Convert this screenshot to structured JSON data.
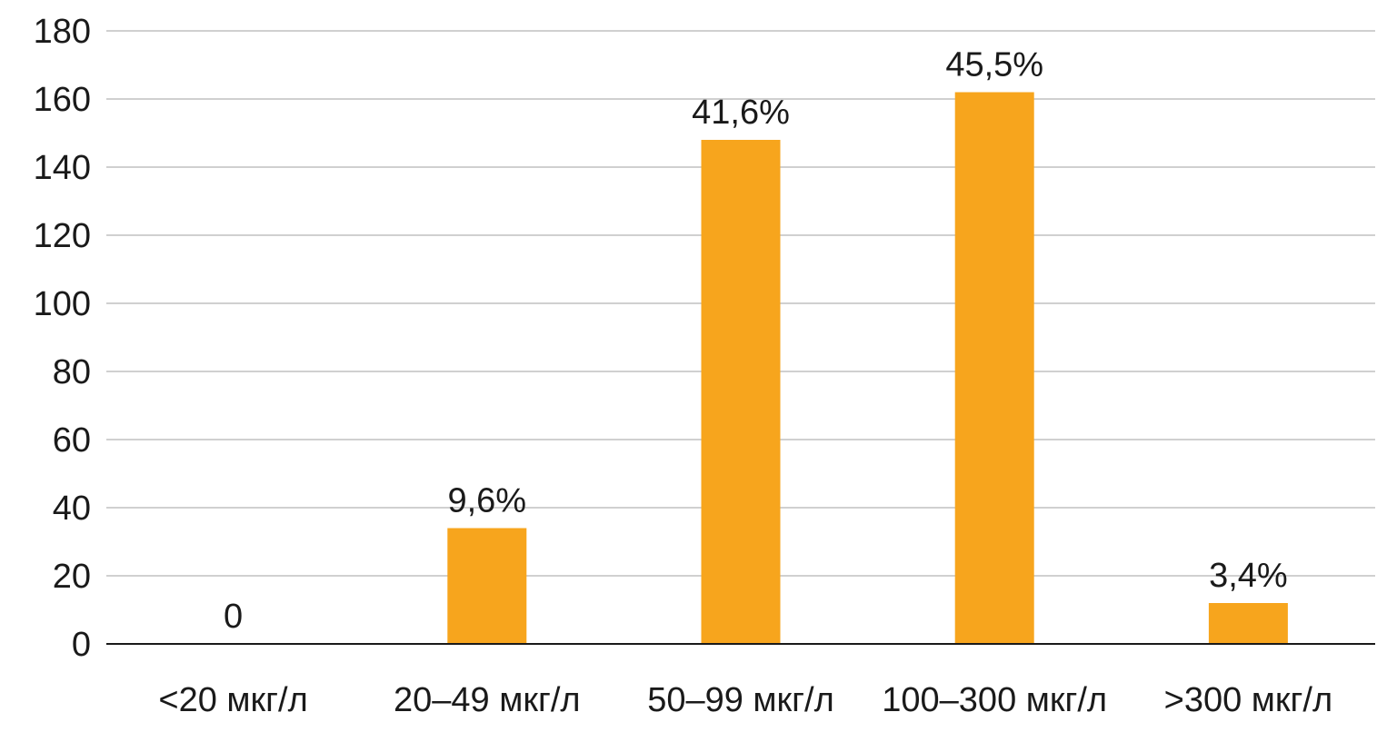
{
  "chart_data": {
    "type": "bar",
    "categories": [
      "<20 мкг/л",
      "20–49 мкг/л",
      "50–99 мкг/л",
      "100–300 мкг/л",
      ">300 мкг/л"
    ],
    "values": [
      0,
      34,
      148,
      162,
      12
    ],
    "data_labels": [
      "0",
      "9,6%",
      "41,6%",
      "45,5%",
      "3,4%"
    ],
    "y_ticks": [
      "0",
      "20",
      "40",
      "60",
      "80",
      "100",
      "120",
      "140",
      "160",
      "180"
    ],
    "ylim": [
      0,
      180
    ],
    "title": "",
    "xlabel": "",
    "ylabel": "",
    "grid": true,
    "legend": "none",
    "colors": {
      "bar": "#F7A51D",
      "grid": "#b5b5b5",
      "axis": "#1a1a1a",
      "text": "#1a1a1a"
    }
  }
}
